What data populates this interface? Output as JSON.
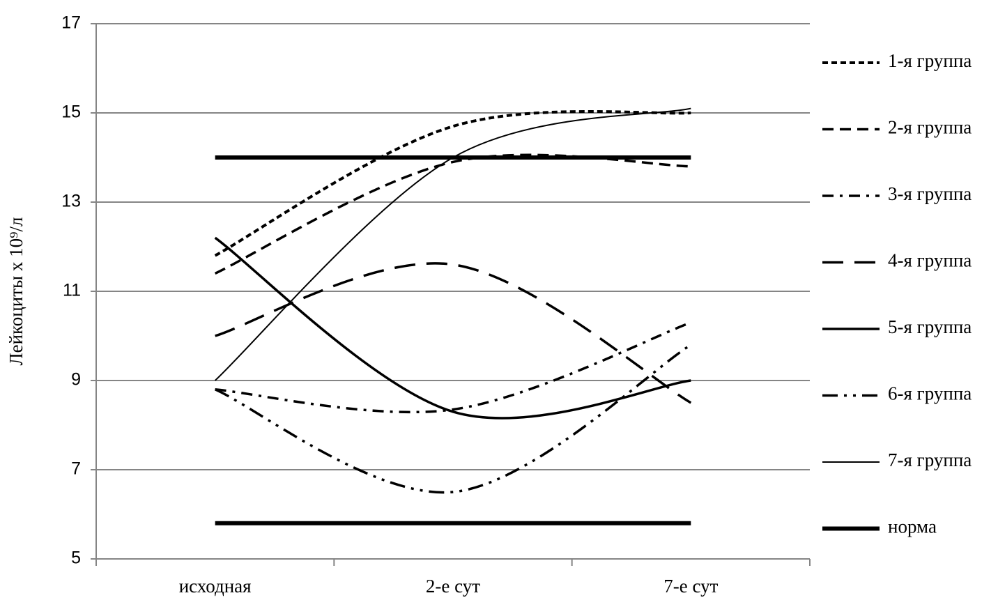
{
  "chart_data": {
    "type": "line",
    "y_label": "Лейкоциты х 10⁹/л",
    "categories": [
      "исходная",
      "2-е сут",
      "7-е сут"
    ],
    "series": [
      {
        "name": "1-я группа",
        "color": "#000000",
        "dash": "8 5",
        "values": [
          11.8,
          14.7,
          15.0
        ]
      },
      {
        "name": "2-я группа",
        "color": "#000000",
        "dash": "16 9",
        "values": [
          11.4,
          13.9,
          13.8
        ]
      },
      {
        "name": "3-я группа",
        "color": "#000000",
        "dash": "16 9 4 9",
        "values": [
          8.8,
          8.35,
          10.3
        ]
      },
      {
        "name": "4-я группа",
        "color": "#000000",
        "dash": "30 16",
        "values": [
          10.0,
          11.6,
          8.5
        ]
      },
      {
        "name": "5-я группа",
        "color": "#000000",
        "dash": "none",
        "values": [
          12.2,
          8.3,
          9.0
        ]
      },
      {
        "name": "6-я группа",
        "color": "#000000",
        "dash": "22 9 4 9 4 9",
        "values": [
          8.8,
          6.5,
          9.8
        ]
      },
      {
        "name": "7-я группа",
        "color": "#000000",
        "dash": "none",
        "values": [
          9.0,
          14.0,
          15.1
        ]
      },
      {
        "name": "норма",
        "color": "#000000",
        "dash": "none",
        "values": [
          14,
          14,
          14
        ],
        "lower": [
          5.8,
          5.8,
          5.8
        ]
      }
    ],
    "ylim": [
      5,
      17
    ],
    "yticks": [
      5,
      7,
      9,
      11,
      13,
      15,
      17
    ],
    "grid": true,
    "legend": "right"
  }
}
